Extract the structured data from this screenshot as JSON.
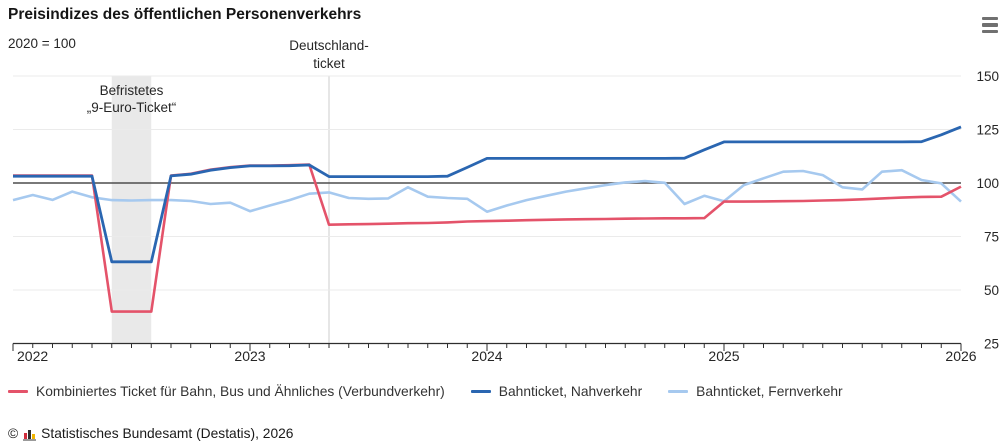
{
  "header": {
    "title": "Preisindizes des öffentlichen Personenverkehrs",
    "subtitle": "2020 = 100",
    "menu_icon": "hamburger-icon"
  },
  "chart_data": {
    "type": "line",
    "title": "Preisindizes des öffentlichen Personenverkehrs",
    "subtitle": "2020 = 100",
    "x_unit": "month",
    "x_start": "2022-01",
    "x_end": "2026-01",
    "x_tick_labels": [
      "2022",
      "2023",
      "2024",
      "2025",
      "2026"
    ],
    "y_ticks": [
      150,
      125,
      100,
      75,
      50,
      25
    ],
    "ylim": [
      25,
      150
    ],
    "baseline_value": 100,
    "grid": true,
    "legend_position": "bottom",
    "colors": {
      "band": "#e9e9e9",
      "vline": "#d8d8d8",
      "grid": "#ebebeb",
      "baseline": "#4d4d4d",
      "axis": "#2e2e2e"
    },
    "annotations": [
      {
        "type": "band",
        "label_lines": [
          "Befristetes",
          "„9-Euro-Ticket“"
        ],
        "from": "2022-06",
        "to": "2022-08"
      },
      {
        "type": "vline",
        "label_lines": [
          "Deutschland-",
          "ticket"
        ],
        "at": "2023-05"
      }
    ],
    "series": [
      {
        "name": "Kombiniertes Ticket für Bahn, Bus und Ähnliches (Verbundverkehr)",
        "color": "#e4536a",
        "width": 2.6,
        "values": [
          103.5,
          103.5,
          103.5,
          103.5,
          103.5,
          39.9,
          39.9,
          39.9,
          103.5,
          104.3,
          106.2,
          107.4,
          108.2,
          108.2,
          108.3,
          108.6,
          80.5,
          80.7,
          80.8,
          81,
          81.2,
          81.3,
          81.6,
          82,
          82.2,
          82.4,
          82.6,
          82.8,
          83,
          83.1,
          83.2,
          83.3,
          83.4,
          83.5,
          83.5,
          83.6,
          91.3,
          91.3,
          91.4,
          91.5,
          91.6,
          91.8,
          92,
          92.4,
          92.8,
          93.2,
          93.5,
          93.6,
          98.3
        ]
      },
      {
        "name": "Bahnticket, Nahverkehr",
        "color": "#2a66b1",
        "width": 2.8,
        "values": [
          103.2,
          103.2,
          103.2,
          103.2,
          103.2,
          63.2,
          63.2,
          63.2,
          103.3,
          104.1,
          106,
          107.2,
          108,
          108,
          108.1,
          108.4,
          103,
          103,
          103,
          103,
          103,
          103,
          103.2,
          107.3,
          111.5,
          111.5,
          111.5,
          111.5,
          111.5,
          111.5,
          111.5,
          111.5,
          111.5,
          111.5,
          111.6,
          115.5,
          119.2,
          119.2,
          119.2,
          119.2,
          119.2,
          119.2,
          119.2,
          119.2,
          119.2,
          119.2,
          119.3,
          122.5,
          126.2
        ]
      },
      {
        "name": "Bahnticket, Fernverkehr",
        "color": "#a6c9ef",
        "width": 2.6,
        "values": [
          92,
          94.4,
          92.1,
          96,
          93.3,
          92,
          91.8,
          92,
          92,
          91.6,
          90.2,
          90.8,
          86.8,
          89.5,
          92,
          95,
          95.6,
          93,
          92.6,
          92.8,
          98,
          93.6,
          93,
          92.6,
          86.6,
          89.5,
          92,
          94,
          96,
          97.5,
          99,
          100.3,
          100.9,
          100.1,
          90.2,
          94,
          91.5,
          99,
          102.2,
          105.3,
          105.6,
          103.7,
          98,
          97,
          105.3,
          106,
          101.4,
          99.8,
          91.3
        ]
      }
    ]
  },
  "footer": {
    "copyright": "©",
    "logo": "destatis-bar-chart-logo",
    "source": "Statistisches Bundesamt (Destatis), 2026"
  }
}
